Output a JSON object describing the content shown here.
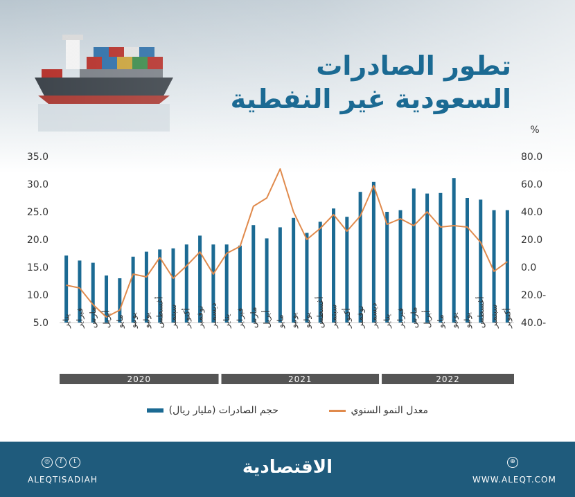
{
  "header": {
    "title_line1": "تطور الصادرات",
    "title_line2": "السعودية غير النفطية"
  },
  "chart_data": {
    "type": "bar",
    "categories": [
      "يناير",
      "فبراير",
      "مارس",
      "أبريل",
      "مايو",
      "يونيو",
      "يوليو",
      "أغسطس",
      "سبتمبر",
      "أكتوبر",
      "نوفمبر",
      "ديسمبر",
      "يناير",
      "فبراير",
      "مارس",
      "أبريل",
      "مايو",
      "يونيو",
      "يوليو",
      "أغسطس",
      "سبتمبر",
      "أكتوبر",
      "نوفمبر",
      "ديسمبر",
      "يناير",
      "فبراير",
      "مارس",
      "أبريل",
      "مايو",
      "يونيو",
      "يوليو",
      "أغسطس",
      "سبتمبر",
      "أكتوبر"
    ],
    "years": [
      {
        "label": "2020",
        "from": 0,
        "to": 11
      },
      {
        "label": "2021",
        "from": 12,
        "to": 23
      },
      {
        "label": "2022",
        "from": 24,
        "to": 33
      }
    ],
    "series": [
      {
        "name": "حجم الصادرات (مليار ريال)",
        "type": "bar",
        "axis": "left",
        "color": "#1b6a93",
        "values": [
          17.1,
          16.2,
          15.8,
          13.5,
          13.0,
          16.9,
          17.8,
          18.2,
          18.4,
          19.1,
          20.7,
          19.1,
          19.1,
          18.9,
          22.6,
          20.2,
          22.2,
          23.9,
          21.2,
          23.2,
          25.6,
          24.1,
          28.6,
          30.4,
          25.0,
          25.3,
          29.2,
          28.3,
          28.4,
          31.1,
          27.5,
          27.2,
          25.3,
          25.3
        ]
      },
      {
        "name": "معدل النمو السنوي",
        "type": "line",
        "axis": "right",
        "color": "#e08a4c",
        "values": [
          -13,
          -15,
          -27,
          -36,
          -31,
          -5,
          -7,
          7,
          -8,
          1,
          11,
          -5,
          10,
          15,
          44,
          50,
          71,
          40,
          20,
          28,
          38,
          26,
          37,
          59,
          31,
          35,
          30,
          40,
          29,
          30,
          29,
          18,
          -3,
          4
        ]
      }
    ],
    "ylim_left": [
      5.0,
      35.0
    ],
    "ylim_right": [
      -40.0,
      80.0
    ],
    "y_ticks_left": [
      "35.0",
      "30.0",
      "25.0",
      "20.0",
      "15.0",
      "10.0",
      "5.0"
    ],
    "y_ticks_right": [
      "80.0",
      "60.0",
      "40.0",
      "20.0",
      "0.0",
      "20.0-",
      "40.0-"
    ],
    "right_unit": "%",
    "legend": {
      "bar_label": "حجم الصادرات (مليار ريال)",
      "line_label": "معدل النمو السنوي"
    }
  },
  "footer": {
    "brand": "الاقتصادية",
    "handle": "ALEQTISADIAH",
    "website": "WWW.ALEQT.COM",
    "social_icons": [
      "instagram-icon",
      "facebook-icon",
      "twitter-icon"
    ],
    "web_icon": "globe-icon"
  },
  "colors": {
    "bar": "#1b6a93",
    "line": "#e08a4c",
    "year_band": "#555555",
    "footer_bg": "#1f5b7c"
  }
}
